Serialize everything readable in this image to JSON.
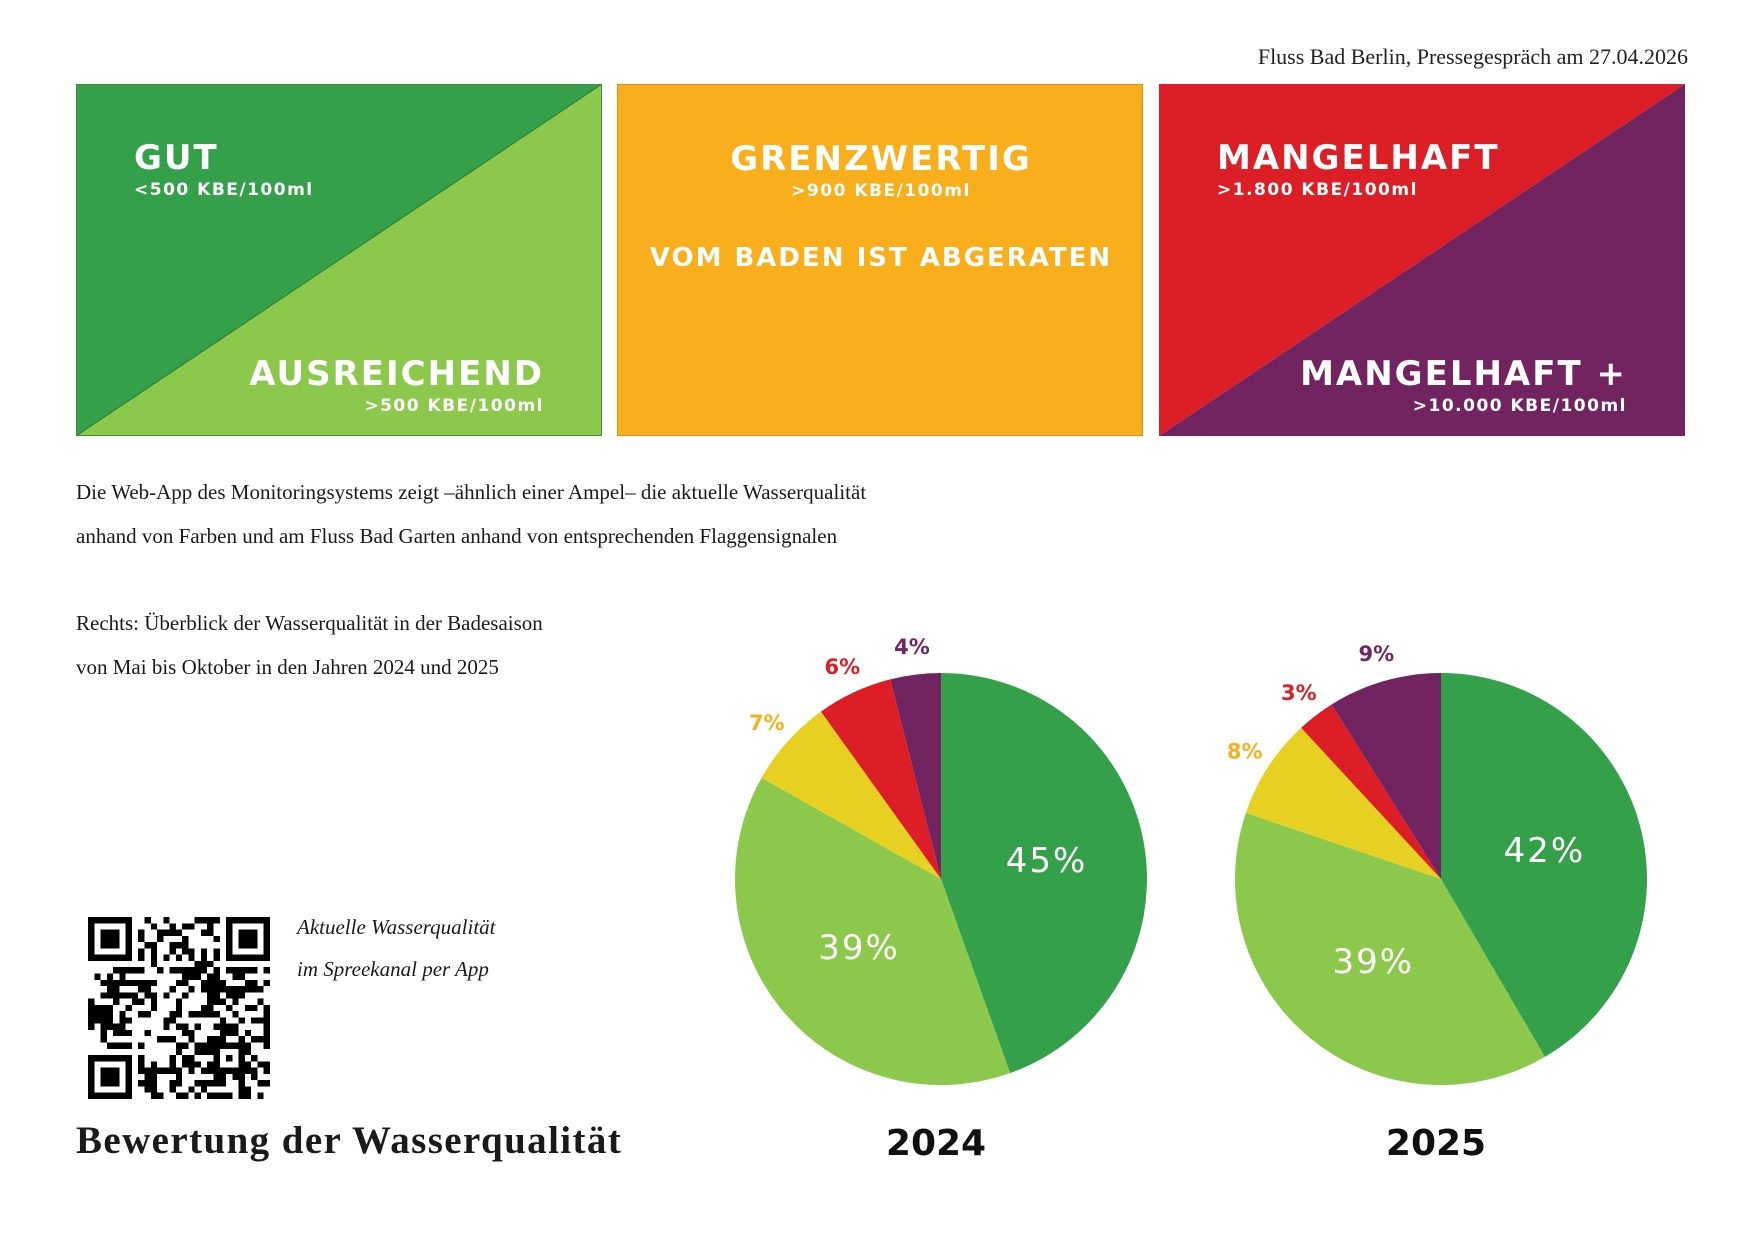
{
  "header": {
    "note": "Fluss Bad Berlin, Pressegespräch am 27.04.2026"
  },
  "colors": {
    "gut": "#34a04a",
    "ausreichend": "#8cc84b",
    "grenzwertig": "#f9ae1b",
    "grenzwertig_pie": "#e6d021",
    "mangelhaft": "#dc1f26",
    "mangelhaft_plus": "#722461"
  },
  "tiles": {
    "gut": {
      "title": "GUT",
      "threshold": "<500 KBE/100ml"
    },
    "ausreichend": {
      "title": "AUSREICHEND",
      "threshold": ">500 KBE/100ml"
    },
    "grenzwertig": {
      "title": "GRENZWERTIG",
      "threshold": ">900 KBE/100ml",
      "note": "VOM BADEN IST ABGERATEN"
    },
    "mangelhaft": {
      "title": "MANGELHAFT",
      "threshold": ">1.800 KBE/100ml"
    },
    "mangelhaft_plus": {
      "title": "MANGELHAFT +",
      "threshold": ">10.000 KBE/100ml"
    }
  },
  "intro": {
    "line1": "Die Web-App des Monitoringsystems zeigt –ähnlich einer Ampel– die aktuelle Wasserqualität",
    "line2": "anhand von Farben und am Fluss Bad Garten anhand von entsprechenden Flaggensignalen"
  },
  "overview": {
    "line1": "Rechts: Überblick der Wasserqualität in der Badesaison",
    "line2": "von Mai bis Oktober in den Jahren 2024 und 2025"
  },
  "qr": {
    "icon": "qr-code-icon",
    "caption_line1": "Aktuelle Wasserqualität",
    "caption_line2": "im Spreekanal per App"
  },
  "page_title": "Bewertung der Wasserqualität",
  "chart_data": [
    {
      "type": "pie",
      "title": "2024",
      "categories": [
        "Gut",
        "Ausreichend",
        "Grenzwertig",
        "Mangelhaft",
        "Mangelhaft +"
      ],
      "values": [
        45,
        39,
        7,
        6,
        4
      ],
      "labels": [
        "45%",
        "39%",
        "7%",
        "6%",
        "4%"
      ]
    },
    {
      "type": "pie",
      "title": "2025",
      "categories": [
        "Gut",
        "Ausreichend",
        "Grenzwertig",
        "Mangelhaft",
        "Mangelhaft +"
      ],
      "values": [
        42,
        39,
        8,
        3,
        9
      ],
      "labels": [
        "42%",
        "39%",
        "8%",
        "3%",
        "9%"
      ]
    }
  ]
}
